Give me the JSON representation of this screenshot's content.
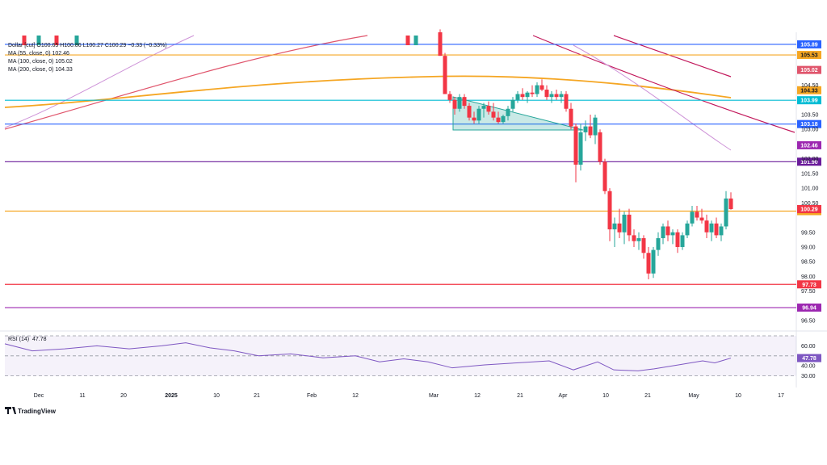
{
  "chart_data": {
    "type": "candlestick",
    "instrument": "Dollar",
    "legend": {
      "price_line": "Dollar [cut]  O100.65  H100.86  L100.27  C100.29  −0.33 (−0.33%)",
      "ma_lines": [
        {
          "text": "MA (55, close, 0)  102.46",
          "color": "#9c27b0"
        },
        {
          "text": "MA (100, close, 0)  105.02",
          "color": "#e0556c"
        },
        {
          "text": "MA (200, close, 0)  104.33",
          "color": "#f5a623"
        }
      ]
    },
    "x_ticks": [
      "Dec",
      "11",
      "20",
      "2025",
      "10",
      "21",
      "Feb",
      "12",
      "Mar",
      "12",
      "21",
      "Apr",
      "10",
      "21",
      "May",
      "10",
      "17"
    ],
    "y_ticks": [
      {
        "label": "104.50",
        "value": 104.5
      },
      {
        "label": "103.50",
        "value": 103.5
      },
      {
        "label": "103.00",
        "value": 103.0
      },
      {
        "label": "102.00",
        "value": 102.0
      },
      {
        "label": "101.50",
        "value": 101.5
      },
      {
        "label": "101.00",
        "value": 101.0
      },
      {
        "label": "100.50",
        "value": 100.5
      },
      {
        "label": "99.50",
        "value": 99.5
      },
      {
        "label": "99.00",
        "value": 99.0
      },
      {
        "label": "98.50",
        "value": 98.5
      },
      {
        "label": "98.00",
        "value": 98.0
      },
      {
        "label": "97.50",
        "value": 97.5
      },
      {
        "label": "96.50",
        "value": 96.5
      }
    ],
    "price_range": [
      96.2,
      106.3
    ],
    "horizontal_levels": [
      {
        "value": 105.89,
        "label": "105.89",
        "color": "#2962ff"
      },
      {
        "value": 105.53,
        "label": "105.53",
        "color": "#f5a623"
      },
      {
        "value": 103.99,
        "label": "103.99",
        "color": "#00bcd4"
      },
      {
        "value": 103.18,
        "label": "103.18",
        "color": "#2962ff"
      },
      {
        "value": 101.9,
        "label": "101.90",
        "color": "#6a1b9a"
      },
      {
        "value": 100.22,
        "label": "100.22",
        "color": "#f5a623"
      },
      {
        "value": 97.73,
        "label": "97.73",
        "color": "#f23645"
      },
      {
        "value": 96.94,
        "label": "96.94",
        "color": "#9c27b0"
      }
    ],
    "price_badges": [
      {
        "value": 105.02,
        "label": "105.02",
        "color": "#e0556c"
      },
      {
        "value": 104.33,
        "label": "104.33",
        "color": "#f5a623"
      },
      {
        "value": 102.46,
        "label": "102.46",
        "color": "#9c27b0"
      },
      {
        "value": 100.29,
        "label": "100.29",
        "color": "#f23645"
      }
    ],
    "candles_note": "Candles visible from early March to early May",
    "candles": [
      {
        "x": 545,
        "o": 106.3,
        "h": 106.4,
        "l": 105.5,
        "c": 105.5
      },
      {
        "x": 551,
        "o": 105.5,
        "h": 105.6,
        "l": 104.2,
        "c": 104.2
      },
      {
        "x": 557,
        "o": 104.2,
        "h": 104.3,
        "l": 103.9,
        "c": 104.0
      },
      {
        "x": 563,
        "o": 104.0,
        "h": 104.1,
        "l": 103.5,
        "c": 103.7
      },
      {
        "x": 569,
        "o": 103.7,
        "h": 104.2,
        "l": 103.6,
        "c": 104.1
      },
      {
        "x": 575,
        "o": 104.1,
        "h": 104.2,
        "l": 103.7,
        "c": 103.8
      },
      {
        "x": 581,
        "o": 103.8,
        "h": 103.9,
        "l": 103.3,
        "c": 103.4
      },
      {
        "x": 587,
        "o": 103.4,
        "h": 103.6,
        "l": 103.2,
        "c": 103.3
      },
      {
        "x": 593,
        "o": 103.3,
        "h": 103.8,
        "l": 103.2,
        "c": 103.7
      },
      {
        "x": 599,
        "o": 103.7,
        "h": 103.9,
        "l": 103.4,
        "c": 103.8
      },
      {
        "x": 605,
        "o": 103.8,
        "h": 103.95,
        "l": 103.5,
        "c": 103.6
      },
      {
        "x": 611,
        "o": 103.6,
        "h": 103.9,
        "l": 103.3,
        "c": 103.4
      },
      {
        "x": 617,
        "o": 103.4,
        "h": 103.6,
        "l": 103.2,
        "c": 103.25
      },
      {
        "x": 623,
        "o": 103.25,
        "h": 103.5,
        "l": 103.2,
        "c": 103.45
      },
      {
        "x": 629,
        "o": 103.45,
        "h": 103.8,
        "l": 103.3,
        "c": 103.7
      },
      {
        "x": 635,
        "o": 103.7,
        "h": 104.1,
        "l": 103.6,
        "c": 104.0
      },
      {
        "x": 641,
        "o": 104.0,
        "h": 104.3,
        "l": 103.9,
        "c": 104.2
      },
      {
        "x": 647,
        "o": 104.2,
        "h": 104.4,
        "l": 104.0,
        "c": 104.1
      },
      {
        "x": 653,
        "o": 104.1,
        "h": 104.3,
        "l": 103.9,
        "c": 104.25
      },
      {
        "x": 659,
        "o": 104.25,
        "h": 104.5,
        "l": 104.1,
        "c": 104.2
      },
      {
        "x": 665,
        "o": 104.2,
        "h": 104.6,
        "l": 104.1,
        "c": 104.5
      },
      {
        "x": 671,
        "o": 104.5,
        "h": 104.7,
        "l": 104.3,
        "c": 104.35
      },
      {
        "x": 677,
        "o": 104.35,
        "h": 104.5,
        "l": 104.0,
        "c": 104.1
      },
      {
        "x": 683,
        "o": 104.1,
        "h": 104.3,
        "l": 103.9,
        "c": 104.2
      },
      {
        "x": 689,
        "o": 104.2,
        "h": 104.35,
        "l": 104.0,
        "c": 104.1
      },
      {
        "x": 695,
        "o": 104.1,
        "h": 104.3,
        "l": 103.9,
        "c": 104.2
      },
      {
        "x": 701,
        "o": 104.2,
        "h": 104.3,
        "l": 103.6,
        "c": 103.7
      },
      {
        "x": 707,
        "o": 103.7,
        "h": 103.9,
        "l": 103.0,
        "c": 103.1
      },
      {
        "x": 713,
        "o": 103.1,
        "h": 103.2,
        "l": 101.2,
        "c": 101.8
      },
      {
        "x": 719,
        "o": 101.8,
        "h": 103.2,
        "l": 101.6,
        "c": 102.9
      },
      {
        "x": 725,
        "o": 102.9,
        "h": 103.3,
        "l": 102.6,
        "c": 103.1
      },
      {
        "x": 731,
        "o": 103.1,
        "h": 103.5,
        "l": 102.7,
        "c": 102.8
      },
      {
        "x": 737,
        "o": 102.8,
        "h": 103.5,
        "l": 102.5,
        "c": 103.4
      },
      {
        "x": 743,
        "o": 102.9,
        "h": 103.0,
        "l": 101.8,
        "c": 101.9
      },
      {
        "x": 749,
        "o": 101.9,
        "h": 102.0,
        "l": 100.8,
        "c": 100.9
      },
      {
        "x": 755,
        "o": 100.9,
        "h": 101.0,
        "l": 99.2,
        "c": 99.6
      },
      {
        "x": 761,
        "o": 99.6,
        "h": 100.0,
        "l": 99.0,
        "c": 99.8
      },
      {
        "x": 767,
        "o": 99.8,
        "h": 100.3,
        "l": 99.3,
        "c": 99.5
      },
      {
        "x": 773,
        "o": 99.5,
        "h": 100.2,
        "l": 99.1,
        "c": 100.1
      },
      {
        "x": 779,
        "o": 100.1,
        "h": 100.3,
        "l": 99.2,
        "c": 99.4
      },
      {
        "x": 785,
        "o": 99.4,
        "h": 99.6,
        "l": 99.0,
        "c": 99.2
      },
      {
        "x": 791,
        "o": 99.2,
        "h": 99.5,
        "l": 98.9,
        "c": 99.3
      },
      {
        "x": 797,
        "o": 99.3,
        "h": 99.4,
        "l": 98.6,
        "c": 98.8
      },
      {
        "x": 803,
        "o": 98.8,
        "h": 99.0,
        "l": 97.9,
        "c": 98.1
      },
      {
        "x": 809,
        "o": 98.1,
        "h": 99.0,
        "l": 97.95,
        "c": 98.9
      },
      {
        "x": 815,
        "o": 98.9,
        "h": 99.5,
        "l": 98.7,
        "c": 99.3
      },
      {
        "x": 821,
        "o": 99.3,
        "h": 99.8,
        "l": 99.1,
        "c": 99.7
      },
      {
        "x": 827,
        "o": 99.7,
        "h": 99.9,
        "l": 99.2,
        "c": 99.4
      },
      {
        "x": 833,
        "o": 99.4,
        "h": 99.6,
        "l": 99.1,
        "c": 99.5
      },
      {
        "x": 839,
        "o": 99.5,
        "h": 99.6,
        "l": 98.8,
        "c": 99.0
      },
      {
        "x": 845,
        "o": 99.0,
        "h": 99.5,
        "l": 98.9,
        "c": 99.4
      },
      {
        "x": 851,
        "o": 99.4,
        "h": 99.9,
        "l": 99.3,
        "c": 99.8
      },
      {
        "x": 857,
        "o": 99.8,
        "h": 100.4,
        "l": 99.7,
        "c": 100.2
      },
      {
        "x": 863,
        "o": 100.2,
        "h": 100.4,
        "l": 99.9,
        "c": 100.0
      },
      {
        "x": 869,
        "o": 100.0,
        "h": 100.3,
        "l": 99.8,
        "c": 99.9
      },
      {
        "x": 875,
        "o": 99.9,
        "h": 100.1,
        "l": 99.3,
        "c": 99.5
      },
      {
        "x": 881,
        "o": 99.5,
        "h": 99.9,
        "l": 99.2,
        "c": 99.8
      },
      {
        "x": 887,
        "o": 99.8,
        "h": 100.0,
        "l": 99.3,
        "c": 99.4
      },
      {
        "x": 893,
        "o": 99.4,
        "h": 99.8,
        "l": 99.2,
        "c": 99.7
      },
      {
        "x": 899,
        "o": 99.7,
        "h": 100.9,
        "l": 99.6,
        "c": 100.65
      },
      {
        "x": 905,
        "o": 100.65,
        "h": 100.86,
        "l": 100.27,
        "c": 100.29
      }
    ],
    "rsi": {
      "label": "RSI (14)",
      "value_text": "47.78",
      "ticks": [
        {
          "label": "60.00",
          "value": 60
        },
        {
          "label": "40.00",
          "value": 40
        },
        {
          "label": "30.00",
          "value": 30
        }
      ],
      "badge": {
        "label": "47.78",
        "value": 47.78
      },
      "band": [
        30,
        70
      ]
    }
  },
  "branding": {
    "logo_text": "TradingView"
  }
}
